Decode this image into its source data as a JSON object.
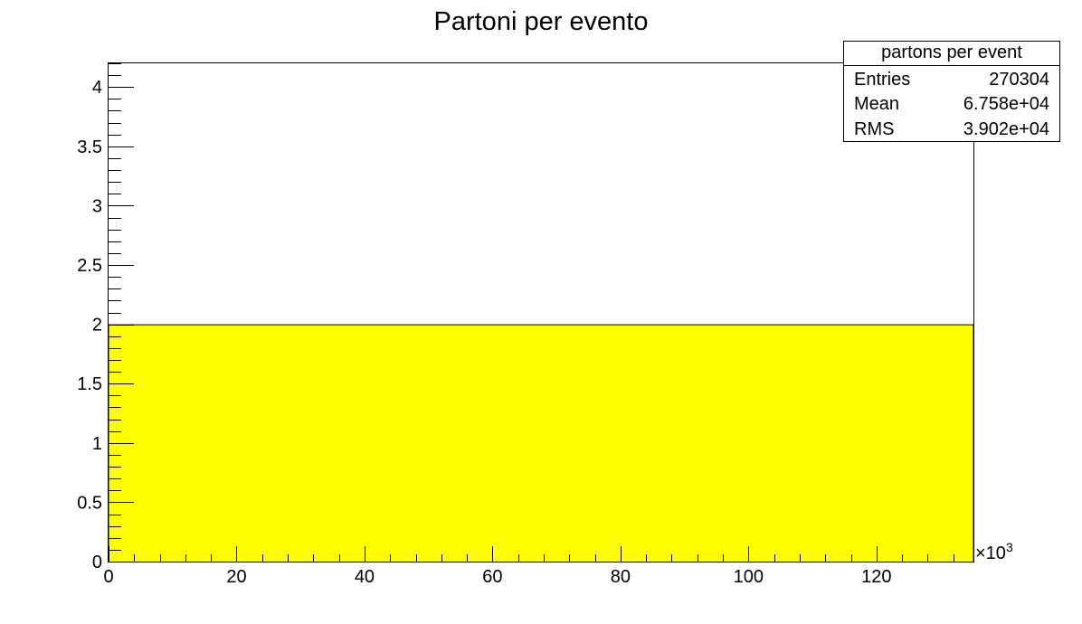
{
  "chart_data": {
    "type": "bar",
    "title": "Partoni per evento",
    "xlabel": "",
    "ylabel": "",
    "x_multiplier_label": "×10",
    "x_multiplier_exponent": "3",
    "xlim": [
      0,
      135.15
    ],
    "ylim": [
      0,
      4.2
    ],
    "x_ticks": [
      "0",
      "20",
      "40",
      "60",
      "80",
      "100",
      "120"
    ],
    "y_ticks": [
      "0",
      "0.5",
      "1",
      "1.5",
      "2",
      "2.5",
      "3",
      "3.5",
      "4"
    ],
    "x_tick_values": [
      0,
      20,
      40,
      60,
      80,
      100,
      120
    ],
    "y_tick_values": [
      0,
      0.5,
      1,
      1.5,
      2,
      2.5,
      3,
      3.5,
      4
    ],
    "bins": [
      {
        "x_low": 0,
        "x_high": 135.15,
        "value": 2
      }
    ],
    "fill_color": "#ffff00",
    "line_color": "#000000",
    "grid": false,
    "legend_position": "top-right"
  },
  "stats_box": {
    "title": "partons per event",
    "rows": [
      {
        "label": "Entries",
        "value": "270304"
      },
      {
        "label": "Mean",
        "value": "6.758e+04"
      },
      {
        "label": "RMS",
        "value": "3.902e+04"
      }
    ]
  }
}
